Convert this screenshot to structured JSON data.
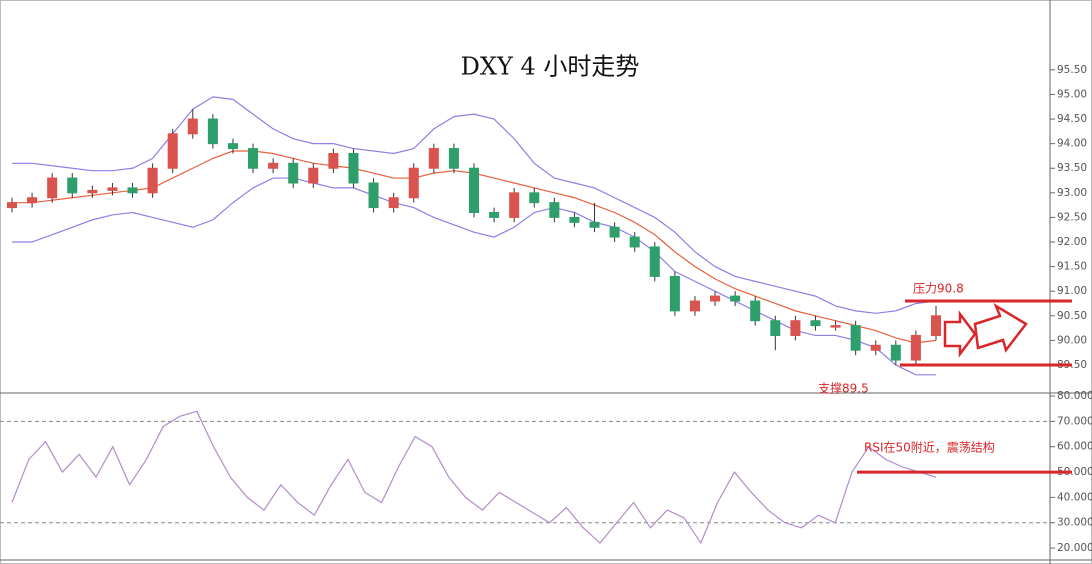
{
  "chart_data": [
    {
      "type": "candlestick",
      "title": "DXY  4 小时走势",
      "open": [
        92.7,
        92.8,
        92.9,
        93.3,
        93.0,
        93.05,
        93.1,
        93.0,
        93.5,
        94.2,
        94.5,
        94.0,
        93.9,
        93.5,
        93.6,
        93.2,
        93.5,
        93.8,
        93.2,
        92.7,
        92.9,
        93.5,
        93.9,
        93.5,
        92.6,
        92.5,
        93.0,
        92.8,
        92.5,
        92.4,
        92.3,
        92.1,
        91.9,
        91.3,
        90.6,
        90.8,
        90.9,
        90.8,
        90.4,
        90.1,
        90.4,
        90.3,
        90.3,
        89.8,
        89.9,
        89.6,
        90.1
      ],
      "high": [
        92.9,
        93.0,
        93.4,
        93.4,
        93.15,
        93.2,
        93.2,
        93.6,
        94.3,
        94.7,
        94.6,
        94.1,
        94.0,
        93.7,
        93.7,
        93.6,
        93.9,
        93.9,
        93.3,
        93.0,
        93.6,
        94.0,
        94.0,
        93.6,
        92.7,
        93.1,
        93.1,
        92.9,
        92.6,
        92.8,
        92.4,
        92.2,
        92.0,
        91.4,
        90.9,
        91.0,
        91.0,
        90.9,
        90.5,
        90.5,
        90.5,
        90.4,
        90.4,
        90.0,
        90.0,
        90.2,
        90.7
      ],
      "low": [
        92.6,
        92.7,
        92.8,
        92.9,
        92.9,
        92.95,
        92.9,
        92.9,
        93.4,
        94.1,
        93.9,
        93.8,
        93.4,
        93.4,
        93.1,
        93.1,
        93.4,
        93.1,
        92.6,
        92.6,
        92.8,
        93.4,
        93.4,
        92.5,
        92.4,
        92.4,
        92.7,
        92.4,
        92.3,
        92.2,
        92.0,
        91.8,
        91.2,
        90.5,
        90.5,
        90.7,
        90.7,
        90.3,
        89.8,
        90.0,
        90.2,
        90.2,
        89.7,
        89.7,
        89.5,
        89.5,
        90.0
      ],
      "close": [
        92.8,
        92.9,
        93.3,
        93.0,
        93.05,
        93.1,
        93.0,
        93.5,
        94.2,
        94.5,
        94.0,
        93.9,
        93.5,
        93.6,
        93.2,
        93.5,
        93.8,
        93.2,
        92.7,
        92.9,
        93.5,
        93.9,
        93.5,
        92.6,
        92.5,
        93.0,
        92.8,
        92.5,
        92.4,
        92.3,
        92.1,
        91.9,
        91.3,
        90.6,
        90.8,
        90.9,
        90.8,
        90.4,
        90.1,
        90.4,
        90.3,
        90.3,
        89.8,
        89.9,
        89.6,
        90.1,
        90.5
      ],
      "up_color": "#d9534f",
      "down_color": "#2e9e6b",
      "series": [
        {
          "color": "#8c80e6",
          "values": [
            93.6,
            93.6,
            93.55,
            93.5,
            93.45,
            93.45,
            93.5,
            93.7,
            94.2,
            94.7,
            94.95,
            94.9,
            94.6,
            94.3,
            94.1,
            94.0,
            94.0,
            93.9,
            93.85,
            93.8,
            93.9,
            94.3,
            94.55,
            94.6,
            94.5,
            94.1,
            93.6,
            93.3,
            93.2,
            93.1,
            92.9,
            92.7,
            92.5,
            92.2,
            91.8,
            91.5,
            91.3,
            91.2,
            91.1,
            91.0,
            90.9,
            90.7,
            90.6,
            90.55,
            90.6,
            90.75,
            90.8
          ]
        },
        {
          "color": "#e8603c",
          "values": [
            92.8,
            92.8,
            92.85,
            92.9,
            92.95,
            93.0,
            93.05,
            93.1,
            93.3,
            93.5,
            93.7,
            93.85,
            93.85,
            93.8,
            93.7,
            93.6,
            93.55,
            93.5,
            93.4,
            93.3,
            93.3,
            93.4,
            93.45,
            93.4,
            93.3,
            93.2,
            93.1,
            93.0,
            92.9,
            92.75,
            92.6,
            92.4,
            92.15,
            91.8,
            91.5,
            91.25,
            91.05,
            90.9,
            90.75,
            90.6,
            90.5,
            90.4,
            90.3,
            90.2,
            90.05,
            89.95,
            90.0
          ]
        },
        {
          "color": "#8c80e6",
          "values": [
            92.0,
            92.0,
            92.15,
            92.3,
            92.45,
            92.55,
            92.6,
            92.5,
            92.4,
            92.3,
            92.45,
            92.8,
            93.1,
            93.3,
            93.3,
            93.2,
            93.1,
            93.1,
            92.95,
            92.8,
            92.7,
            92.5,
            92.35,
            92.2,
            92.1,
            92.3,
            92.6,
            92.7,
            92.6,
            92.4,
            92.3,
            92.1,
            91.8,
            91.4,
            91.2,
            91.0,
            90.8,
            90.6,
            90.4,
            90.2,
            90.1,
            90.1,
            90.0,
            89.85,
            89.5,
            89.3,
            89.3
          ]
        }
      ],
      "ylim": [
        88.93,
        95.66
      ],
      "yticks": [
        {
          "value": 89.5,
          "label": "89.50"
        },
        {
          "value": 90,
          "label": "90.00"
        },
        {
          "value": 90.5,
          "label": "90.50"
        },
        {
          "value": 91,
          "label": "91.00"
        },
        {
          "value": 91.5,
          "label": "91.50"
        },
        {
          "value": 92,
          "label": "92.00"
        },
        {
          "value": 92.5,
          "label": "92.50"
        },
        {
          "value": 93,
          "label": "93.00"
        },
        {
          "value": 93.5,
          "label": "93.50"
        },
        {
          "value": 94,
          "label": "94.00"
        },
        {
          "value": 94.5,
          "label": "94.50"
        },
        {
          "value": 95,
          "label": "95.00"
        },
        {
          "value": 95.5,
          "label": "95.50"
        }
      ],
      "annotations": [
        {
          "text": "压力90.8",
          "value": 90.8,
          "color": "#d9262b"
        },
        {
          "text": "支撑89.5",
          "value": 89.5,
          "color": "#d9262b"
        }
      ]
    },
    {
      "type": "line",
      "color": "#b48ccc",
      "values": [
        38,
        55,
        62,
        50,
        57,
        48,
        60,
        45,
        55,
        68,
        72,
        74,
        60,
        48,
        40,
        35,
        45,
        38,
        33,
        45,
        55,
        42,
        38,
        52,
        64,
        60,
        48,
        40,
        35,
        42,
        38,
        34,
        30,
        36,
        28,
        22,
        30,
        38,
        28,
        35,
        32,
        22,
        38,
        50,
        42,
        35,
        30,
        28,
        33,
        30,
        50,
        60,
        55,
        52,
        50,
        48
      ],
      "ylim": [
        15.3,
        81.2
      ],
      "yticks": [
        {
          "value": 20,
          "label": "20.0000"
        },
        {
          "value": 30,
          "label": "30.0000"
        },
        {
          "value": 40,
          "label": "40.0000"
        },
        {
          "value": 50,
          "label": "50.0000"
        },
        {
          "value": 60,
          "label": "60.0000"
        },
        {
          "value": 70,
          "label": "70.0000"
        },
        {
          "value": 80,
          "label": "80.0000"
        }
      ],
      "reference_lines": [
        70,
        30
      ],
      "annotations": [
        {
          "text": "RSI在50附近，震荡结构",
          "value": 50,
          "color": "#d9262b"
        }
      ]
    }
  ]
}
